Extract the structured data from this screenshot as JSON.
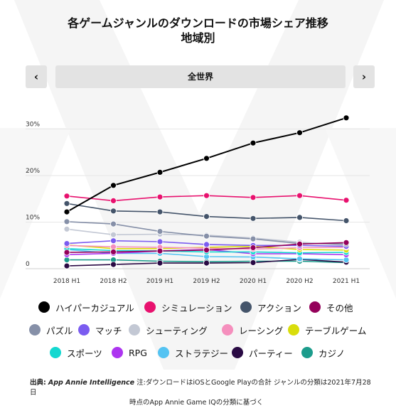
{
  "header": {
    "title_line1": "各ゲームジャンルのダウンロードの市場シェア推移",
    "title_line2": "地域別"
  },
  "nav": {
    "prev_label": "‹",
    "next_label": "›",
    "region_label": "全世界"
  },
  "footnote": {
    "source_label": "出典:",
    "source_name": "App Annie Intelligence",
    "text_line1": " 注:ダウンロードはiOSとGoogle Playの合計 ジャンルの分類は2021年7月28日",
    "text_line2": "時点のApp Annie Game IQの分類に基づく"
  },
  "chart_data": {
    "type": "line",
    "x": [
      "2018 H1",
      "2018 H2",
      "2019 H1",
      "2019 H2",
      "2020 H1",
      "2020 H2",
      "2021 H1"
    ],
    "yticks": [
      "0",
      "10%",
      "20%",
      "30%"
    ],
    "ylim": [
      0,
      35
    ],
    "grid": true,
    "legend_position": "bottom",
    "series": [
      {
        "name": "ハイパーカジュアル",
        "color": "#000000",
        "values": [
          12.2,
          17.9,
          20.7,
          23.7,
          27.0,
          29.2,
          32.4
        ]
      },
      {
        "name": "シミュレーション",
        "color": "#e8116e",
        "values": [
          15.6,
          14.6,
          15.4,
          15.7,
          15.3,
          15.7,
          14.7
        ]
      },
      {
        "name": "アクション",
        "color": "#44546a",
        "values": [
          14.0,
          12.4,
          12.2,
          11.2,
          10.8,
          11.0,
          10.3
        ]
      },
      {
        "name": "その他",
        "color": "#94005a",
        "values": [
          3.5,
          3.6,
          3.8,
          4.0,
          4.5,
          5.3,
          5.6
        ]
      },
      {
        "name": "パズル",
        "color": "#8690a8",
        "values": [
          10.1,
          9.6,
          8.0,
          7.0,
          6.4,
          5.4,
          5.3
        ]
      },
      {
        "name": "マッチ",
        "color": "#7b5cf0",
        "values": [
          5.4,
          6.0,
          5.8,
          5.2,
          5.0,
          5.0,
          4.8
        ]
      },
      {
        "name": "シューティング",
        "color": "#c3c8d4",
        "values": [
          8.5,
          7.3,
          7.4,
          7.2,
          6.6,
          5.7,
          5.0
        ]
      },
      {
        "name": "レーシング",
        "color": "#f58fbd",
        "values": [
          5.0,
          4.7,
          4.6,
          4.4,
          4.2,
          4.5,
          4.6
        ]
      },
      {
        "name": "テーブルゲーム",
        "color": "#d9dd0c",
        "values": [
          5.1,
          4.3,
          4.3,
          4.6,
          4.8,
          4.1,
          4.0
        ]
      },
      {
        "name": "スポーツ",
        "color": "#14d8d0",
        "values": [
          4.3,
          3.9,
          3.8,
          3.6,
          3.6,
          3.4,
          3.5
        ]
      },
      {
        "name": "RPG",
        "color": "#ad35f0",
        "values": [
          3.0,
          3.3,
          3.8,
          4.1,
          3.2,
          3.2,
          3.0
        ]
      },
      {
        "name": "ストラテジー",
        "color": "#54c3f2",
        "values": [
          4.1,
          3.3,
          3.3,
          2.6,
          2.5,
          2.1,
          1.9
        ]
      },
      {
        "name": "パーティー",
        "color": "#2a0a44",
        "values": [
          0.6,
          0.9,
          1.2,
          1.2,
          1.3,
          2.0,
          1.4
        ]
      },
      {
        "name": "カジノ",
        "color": "#1c9c8c",
        "values": [
          1.9,
          1.9,
          1.6,
          1.5,
          1.6,
          1.6,
          1.3
        ]
      }
    ]
  }
}
